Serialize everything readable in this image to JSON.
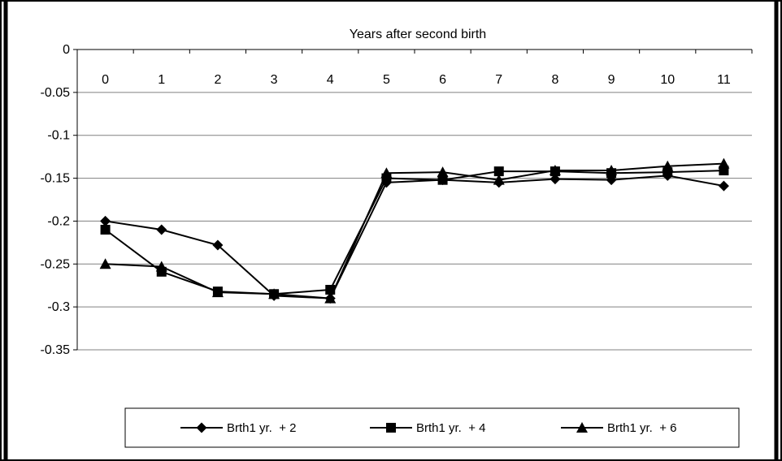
{
  "chart_data": {
    "type": "line",
    "title": "Years after second birth",
    "xlabel": "",
    "ylabel": "",
    "categories": [
      "0",
      "1",
      "2",
      "3",
      "4",
      "5",
      "6",
      "7",
      "8",
      "9",
      "10",
      "11"
    ],
    "x_tick_labels": [
      "0",
      "1",
      "2",
      "3",
      "4",
      "5",
      "6",
      "7",
      "8",
      "9",
      "10",
      "11"
    ],
    "x_axis_position": "top",
    "ylim": [
      -0.35,
      0
    ],
    "y_tick_labels": [
      "0",
      "-0.05",
      "-0.1",
      "-0.15",
      "-0.2",
      "-0.25",
      "-0.3",
      "-0.35"
    ],
    "y_ticks": [
      0,
      -0.05,
      -0.1,
      -0.15,
      -0.2,
      -0.25,
      -0.3,
      -0.35
    ],
    "grid": true,
    "legend_position": "bottom",
    "series": [
      {
        "name": "Brth1 yr.  + 2",
        "marker": "diamond",
        "values": [
          -0.2,
          -0.21,
          -0.228,
          -0.287,
          -0.29,
          -0.155,
          -0.152,
          -0.155,
          -0.151,
          -0.152,
          -0.147,
          -0.159
        ]
      },
      {
        "name": "Brth1 yr.  + 4",
        "marker": "square",
        "values": [
          -0.21,
          -0.259,
          -0.282,
          -0.285,
          -0.28,
          -0.15,
          -0.152,
          -0.142,
          -0.142,
          -0.144,
          -0.143,
          -0.141
        ]
      },
      {
        "name": "Brth1 yr.  + 6",
        "marker": "triangle",
        "values": [
          -0.25,
          -0.253,
          -0.283,
          -0.285,
          -0.29,
          -0.144,
          -0.143,
          -0.152,
          -0.141,
          -0.141,
          -0.136,
          -0.133
        ]
      }
    ]
  }
}
